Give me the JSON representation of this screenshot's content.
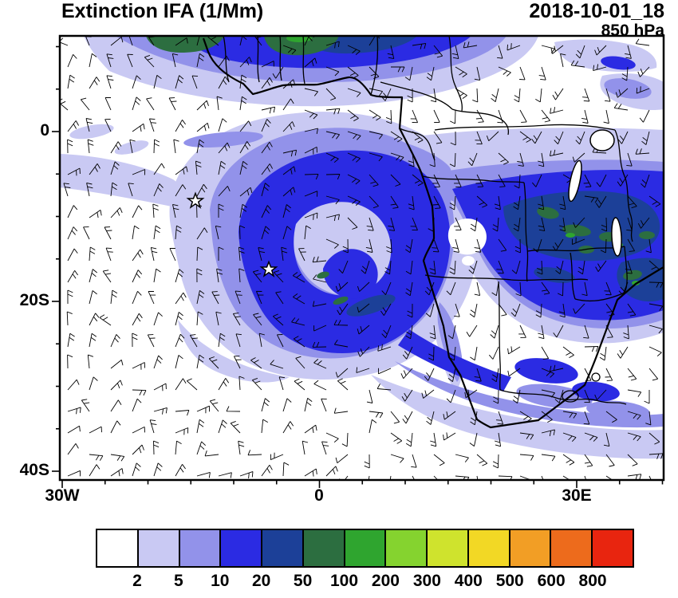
{
  "header": {
    "title": "Extinction IFA (1/Mm)",
    "datetime": "2018-10-01_18",
    "level": "850 hPa"
  },
  "axes": {
    "y_ticks": [
      "0",
      "20S",
      "40S"
    ],
    "x_ticks": [
      "30W",
      "0",
      "30E"
    ]
  },
  "colorbar": {
    "labels": [
      "2",
      "5",
      "10",
      "20",
      "50",
      "100",
      "200",
      "300",
      "400",
      "500",
      "600",
      "800"
    ],
    "colors": [
      "#FFFFFF",
      "#C9C9F3",
      "#9292EA",
      "#2B2BE3",
      "#1C4098",
      "#2C6E40",
      "#2FA52F",
      "#85D32F",
      "#CFE32D",
      "#F2D825",
      "#F29E25",
      "#ED6B1C",
      "#E8250F"
    ]
  },
  "chart_data": {
    "type": "heatmap",
    "title": "Extinction IFA (1/Mm)",
    "valid_time": "2018-10-01_18",
    "pressure_level": "850 hPa",
    "units": "1/Mm",
    "x_axis": {
      "ticks": [
        "30W",
        "0",
        "30E"
      ],
      "range_deg_lon": [
        -30.2,
        40.2
      ]
    },
    "y_axis": {
      "ticks": [
        "0",
        "20S",
        "40S"
      ],
      "range_deg_lat": [
        -41.0,
        11.3
      ]
    },
    "contour_levels": [
      2,
      5,
      10,
      20,
      50,
      100,
      200,
      300,
      400,
      500,
      600,
      800
    ],
    "palette": [
      "#FFFFFF",
      "#C9C9F3",
      "#9292EA",
      "#2B2BE3",
      "#1C4098",
      "#2C6E40",
      "#2FA52F",
      "#85D32F",
      "#CFE32D",
      "#F2D825",
      "#F29E25",
      "#ED6B1C",
      "#E8250F"
    ],
    "overlay": "850 hPa wind barbs over full domain",
    "basemap": "Africa coastline and country borders, lakes Victoria/Tanganyika/Malawi",
    "markers": [
      {
        "type": "star",
        "lon_deg": -14.4,
        "lat_deg": -8.2
      },
      {
        "type": "star",
        "lon_deg": -5.9,
        "lat_deg": -16.2
      }
    ],
    "features": [
      {
        "name": "cyclonic smoke swirl",
        "region": "SE Atlantic ~20W-10E / 5S-25S",
        "levels_1_per_Mm": "5-50"
      },
      {
        "name": "continental biomass plume",
        "region": "Angola-Zambia-Zimbabwe-Mozambique 10E-40E / 5S-20S",
        "levels_1_per_Mm": "20-200 with patches >100"
      },
      {
        "name": "Gulf of Guinea coastal band",
        "region": "25W-15E / 3N-11N along top edge",
        "levels_1_per_Mm": "20-200"
      },
      {
        "name": "diluted band over South Africa",
        "region": "15E-40E / 25S-35S",
        "levels_1_per_Mm": "2-20"
      },
      {
        "name": "clean marine background",
        "region": "SW quadrant of domain",
        "levels_1_per_Mm": "<2"
      }
    ]
  }
}
